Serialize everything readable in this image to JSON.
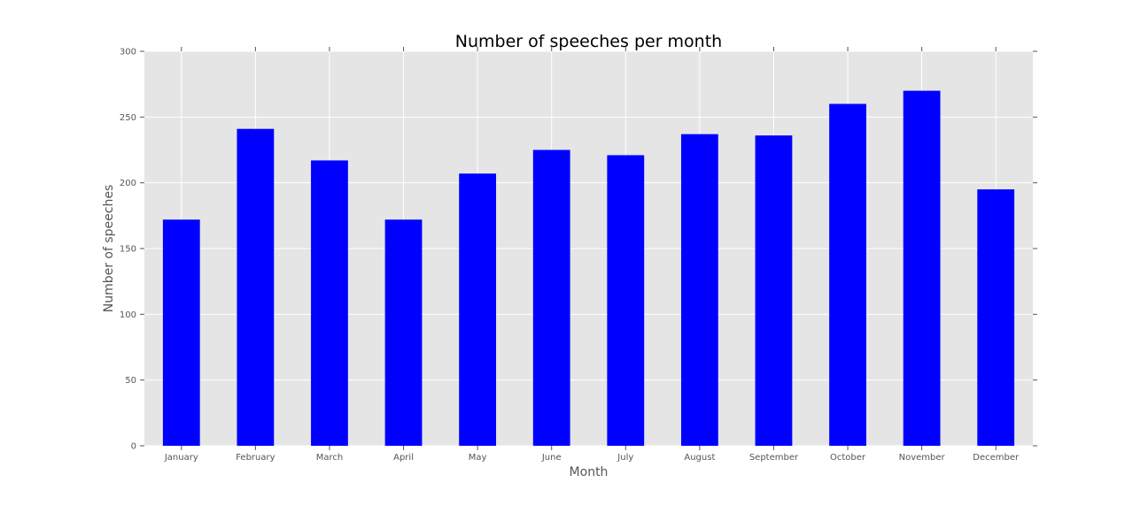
{
  "chart_data": {
    "type": "bar",
    "title": "Number of speeches per month",
    "xlabel": "Month",
    "ylabel": "Number of speeches",
    "categories": [
      "January",
      "February",
      "March",
      "April",
      "May",
      "June",
      "July",
      "August",
      "September",
      "October",
      "November",
      "December"
    ],
    "values": [
      172,
      241,
      217,
      172,
      207,
      225,
      221,
      237,
      236,
      260,
      270,
      195
    ],
    "ylim": [
      0,
      300
    ],
    "yticks": [
      0,
      50,
      100,
      150,
      200,
      250,
      300
    ],
    "grid": true,
    "legend": "none",
    "colors": {
      "bar": "#0000ff",
      "plot_background": "#e5e5e5",
      "grid": "#ffffff"
    }
  }
}
